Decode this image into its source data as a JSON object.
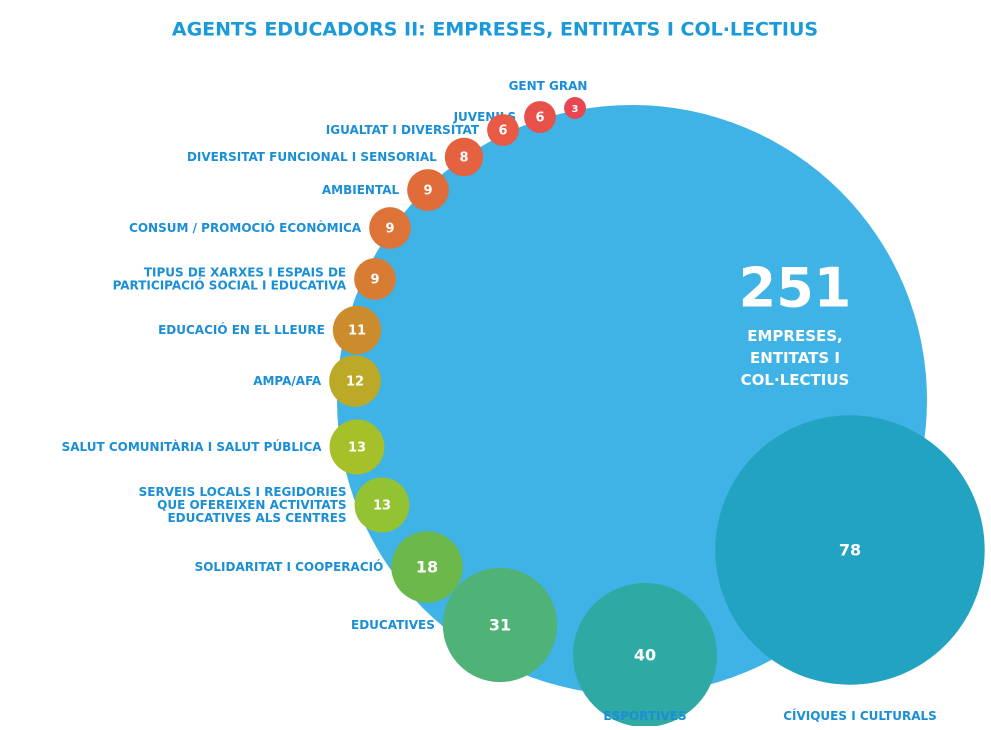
{
  "chart_data": {
    "type": "bubble",
    "title": "AGENTS EDUCADORS II: EMPRESES, ENTITATS I COL·LECTIUS",
    "total": 251,
    "total_label": "EMPRESES,\nENTITATS I\nCOL·LECTIUS",
    "total_color": "#3fb2e6",
    "categories": [
      "GENT GRAN",
      "JUVENILS",
      "IGUALTAT I DIVERSITAT",
      "DIVERSITAT FUNCIONAL I SENSORIAL",
      "AMBIENTAL",
      "CONSUM / PROMOCIÓ ECONÒMICA",
      "TIPUS DE XARXES I ESPAIS DE\nPARTICIPACIÓ SOCIAL I EDUCATIVA",
      "EDUCACIÓ EN EL LLEURE",
      "AMPA/AFA",
      "SALUT COMUNITÀRIA I SALUT PÚBLICA",
      "SERVEIS LOCALS I REGIDORIES\nQUE OFEREIXEN ACTIVITATS\nEDUCATIVES ALS CENTRES",
      "SOLIDARITAT I COOPERACIÓ",
      "EDUCATIVES",
      "ESPORTIVES",
      "CÍVIQUES I CULTURALS"
    ],
    "values": [
      3,
      6,
      6,
      8,
      9,
      9,
      9,
      11,
      12,
      13,
      13,
      18,
      31,
      40,
      78
    ],
    "colors": [
      "#e8474f",
      "#e8504a",
      "#e85a45",
      "#e4623f",
      "#e06c3a",
      "#dd7336",
      "#d87c33",
      "#cc8b2c",
      "#bca928",
      "#a6c02a",
      "#93c332",
      "#6cb84a",
      "#4fb276",
      "#2fa9a4",
      "#22a3c2"
    ],
    "label_color": "#1a8fd6"
  }
}
